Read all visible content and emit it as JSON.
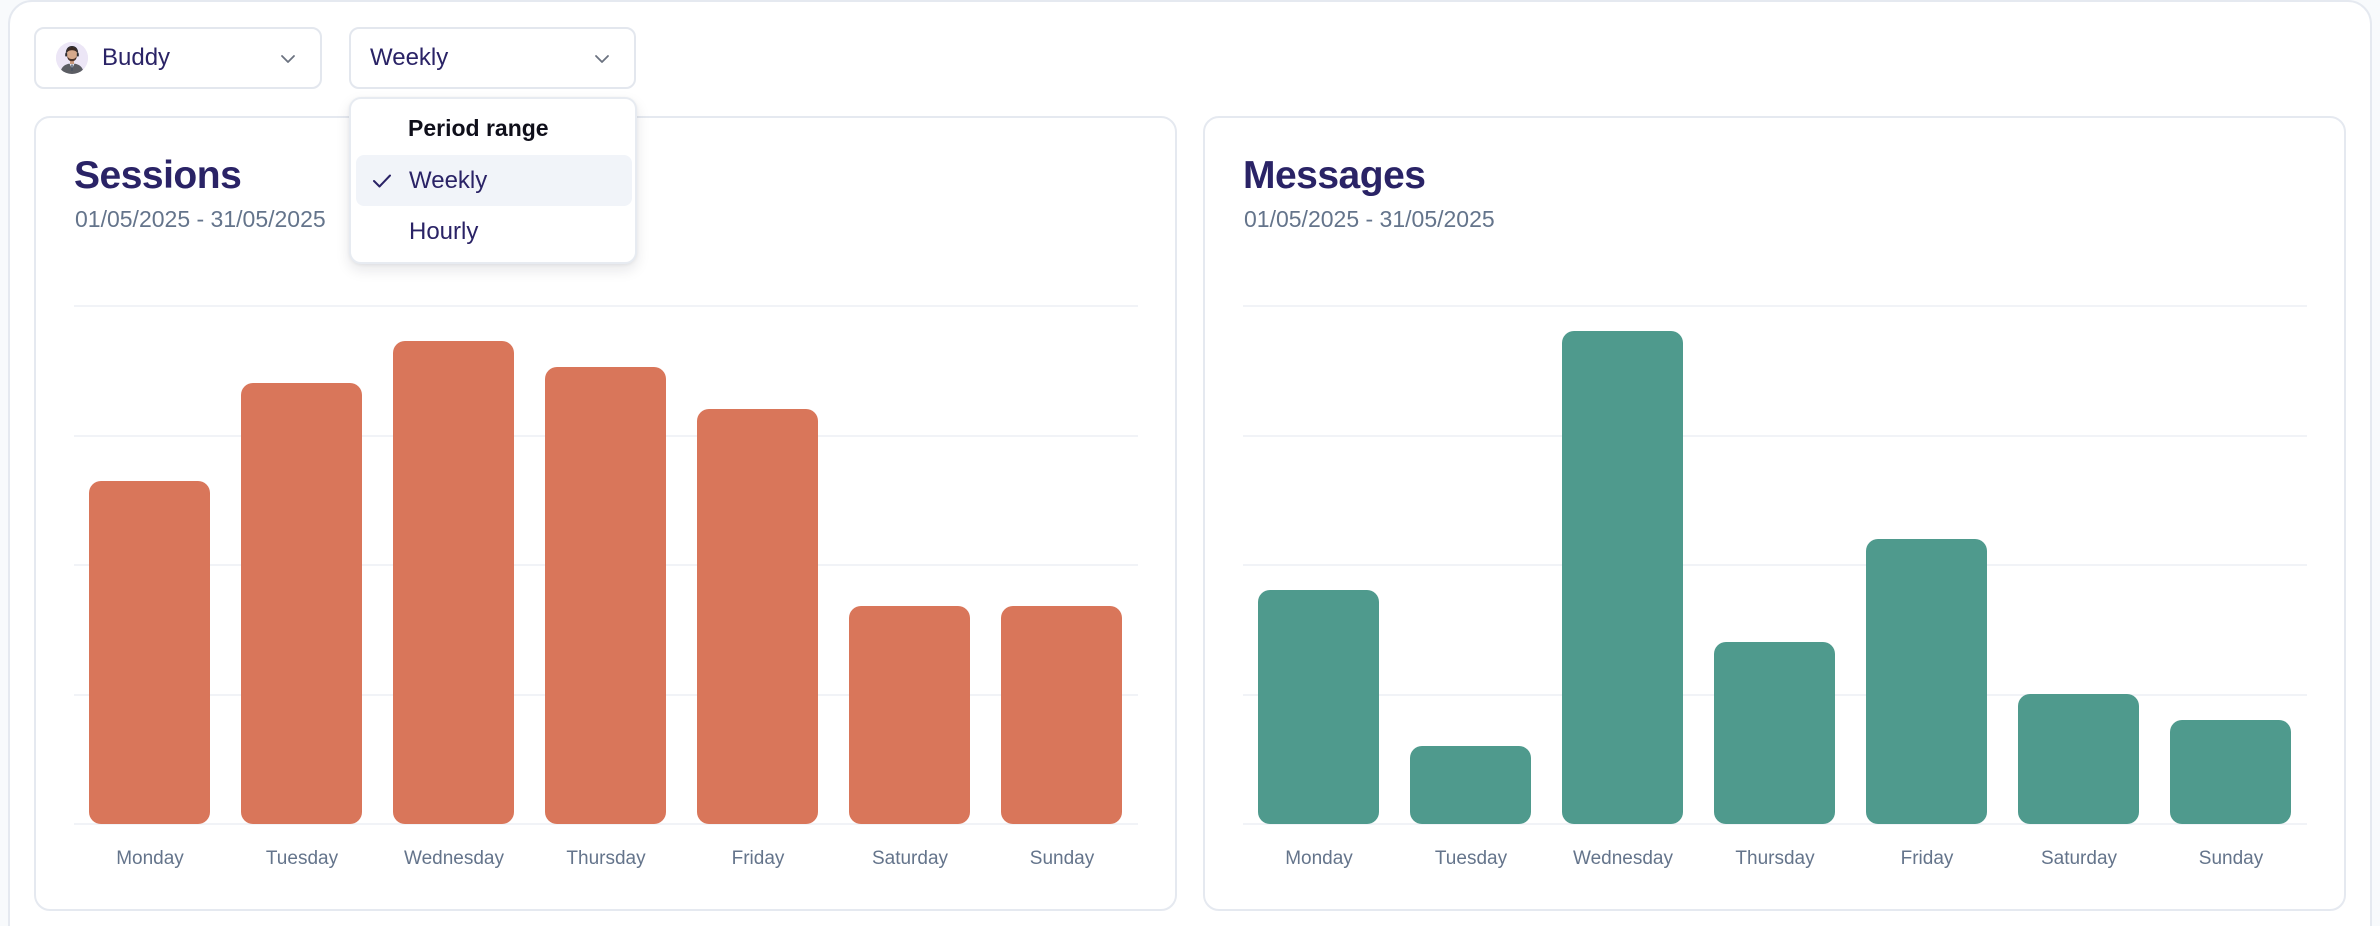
{
  "filters": {
    "agent": {
      "label": "Buddy",
      "avatar": "agent-avatar"
    },
    "period": {
      "label": "Weekly"
    }
  },
  "period_dropdown": {
    "header": "Period range",
    "options": [
      {
        "label": "Weekly",
        "selected": true
      },
      {
        "label": "Hourly",
        "selected": false
      }
    ]
  },
  "colors": {
    "sessions_bar": "#d9765a",
    "messages_bar": "#4f9a8d",
    "title": "#2a2366",
    "muted": "#64748b"
  },
  "sessions": {
    "title": "Sessions",
    "date_range": "01/05/2025 - 31/05/2025"
  },
  "messages": {
    "title": "Messages",
    "date_range": "01/05/2025 - 31/05/2025"
  },
  "chart_data": [
    {
      "type": "bar",
      "title": "Sessions",
      "subtitle": "01/05/2025 - 31/05/2025",
      "categories": [
        "Monday",
        "Tuesday",
        "Wednesday",
        "Thursday",
        "Friday",
        "Saturday",
        "Sunday"
      ],
      "values": [
        66,
        85,
        93,
        88,
        80,
        42,
        42
      ],
      "xlabel": "",
      "ylabel": "",
      "ylim": [
        0,
        100
      ],
      "grid": true,
      "gridlines": 5,
      "y_tick_labels_visible": false,
      "color": "#d9765a",
      "note": "No y-axis labels shown; values estimated as % of top gridline"
    },
    {
      "type": "bar",
      "title": "Messages",
      "subtitle": "01/05/2025 - 31/05/2025",
      "categories": [
        "Monday",
        "Tuesday",
        "Wednesday",
        "Thursday",
        "Friday",
        "Saturday",
        "Sunday"
      ],
      "values": [
        9,
        3,
        19,
        7,
        11,
        5,
        4
      ],
      "xlabel": "",
      "ylabel": "",
      "ylim": [
        0,
        20
      ],
      "grid": true,
      "gridlines": 5,
      "y_tick_labels_visible": false,
      "color": "#4f9a8d",
      "note": "No y-axis labels shown; values estimated assuming gridlines at 0/5/10/15/20"
    }
  ]
}
